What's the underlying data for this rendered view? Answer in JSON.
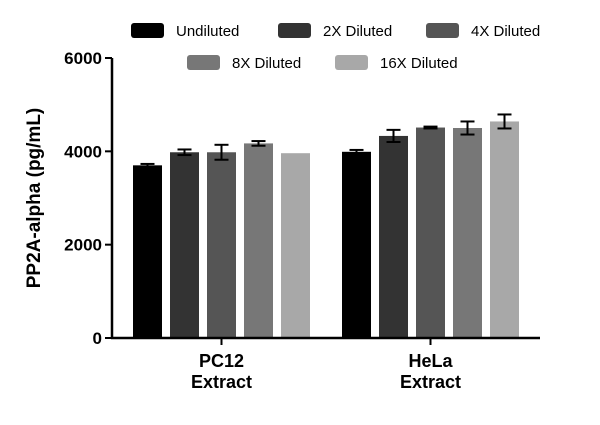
{
  "chart_data": {
    "type": "bar",
    "ylabel": "PP2A-alpha (pg/mL)",
    "xlabel": "",
    "ylim": [
      0,
      6000
    ],
    "yticks": [
      0,
      2000,
      4000,
      6000
    ],
    "categories": [
      [
        "PC12",
        "Extract"
      ],
      [
        "HeLa",
        "Extract"
      ]
    ],
    "legend_position": "top",
    "series": [
      {
        "name": "Undiluted",
        "color": "#000000",
        "values": [
          3700,
          3990
        ],
        "errors": [
          30,
          40
        ]
      },
      {
        "name": "2X Diluted",
        "color": "#333333",
        "values": [
          3980,
          4330
        ],
        "errors": [
          60,
          130
        ]
      },
      {
        "name": "4X Diluted",
        "color": "#555555",
        "values": [
          3980,
          4510
        ],
        "errors": [
          160,
          20
        ]
      },
      {
        "name": "8X Diluted",
        "color": "#777777",
        "values": [
          4170,
          4500
        ],
        "errors": [
          50,
          140
        ]
      },
      {
        "name": "16X Diluted",
        "color": "#a8a8a8",
        "values": [
          3960,
          4640
        ],
        "errors": [
          0,
          150
        ]
      }
    ]
  }
}
